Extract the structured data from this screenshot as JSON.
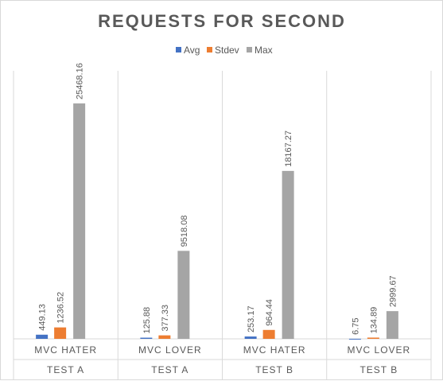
{
  "chart_data": {
    "type": "bar",
    "title": "REQUESTS FOR SECOND",
    "groups": [
      "TEST A",
      "TEST A",
      "TEST B",
      "TEST B"
    ],
    "categories": [
      "MVC HATER",
      "MVC LOVER",
      "MVC HATER",
      "MVC LOVER"
    ],
    "series": [
      {
        "name": "Avg",
        "color": "#4472c4",
        "values": [
          449.13,
          125.88,
          253.17,
          6.75
        ],
        "labels": [
          "449.13",
          "125.88",
          "253.17",
          "6.75"
        ]
      },
      {
        "name": "Stdev",
        "color": "#ed7d31",
        "values": [
          1236.52,
          377.33,
          964.44,
          134.89
        ],
        "labels": [
          "1236.52",
          "377.33",
          "964.44",
          "134.89"
        ]
      },
      {
        "name": "Max",
        "color": "#a5a5a5",
        "values": [
          25468.16,
          9518.08,
          18167.27,
          2999.67
        ],
        "labels": [
          "25468.16",
          "9518.08",
          "18167.27",
          "2999.67"
        ]
      }
    ],
    "ylim": [
      0,
      29000
    ],
    "legend_position": "top",
    "grid": false
  }
}
